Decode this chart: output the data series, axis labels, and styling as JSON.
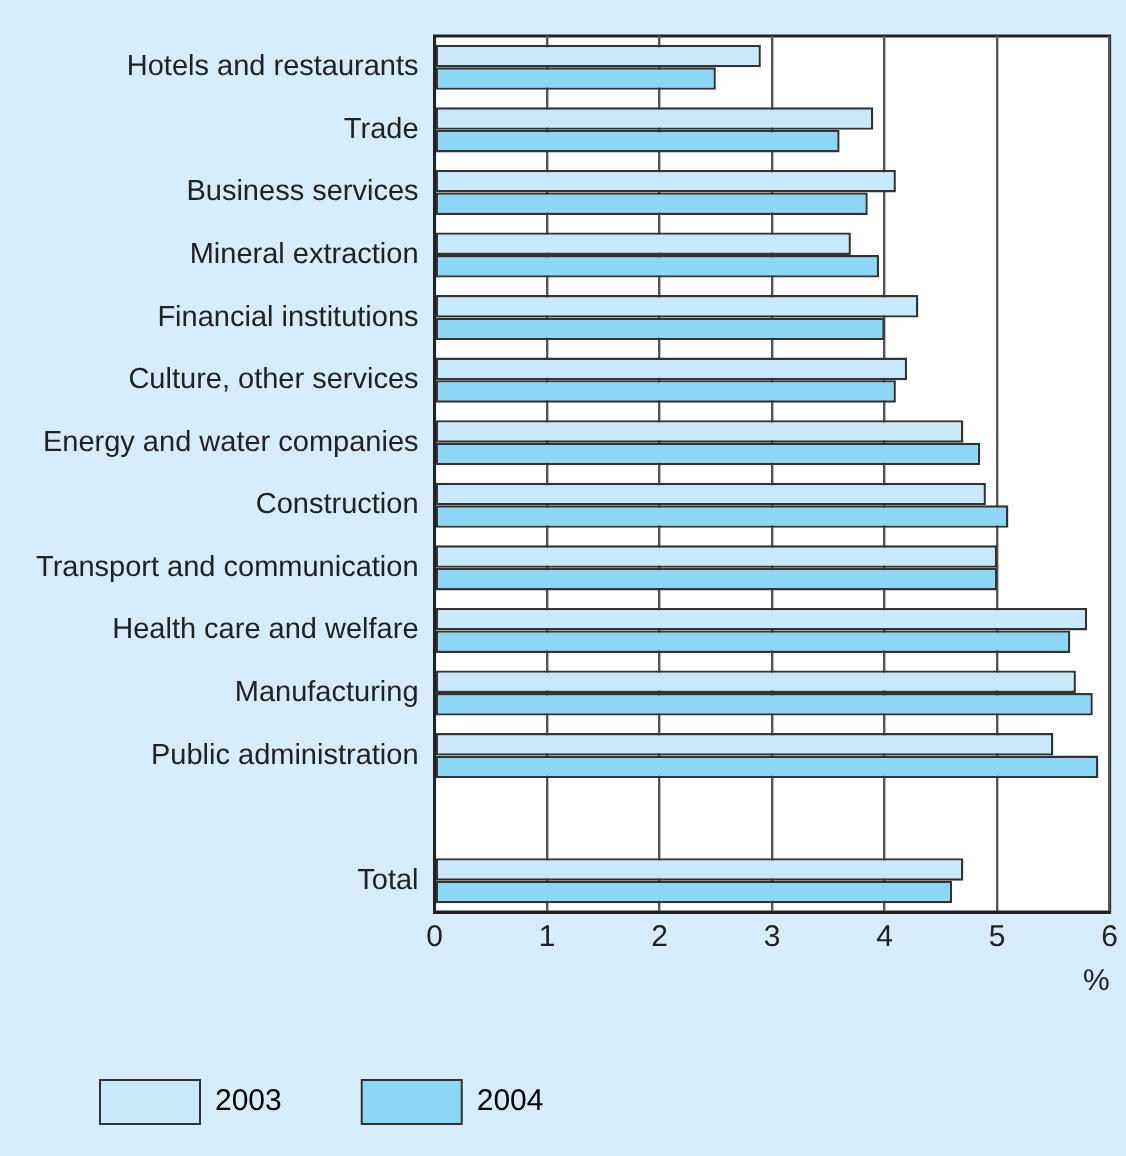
{
  "chart_data": {
    "type": "bar",
    "orientation": "horizontal",
    "xlabel": "%",
    "categories": [
      "Hotels and restaurants",
      "Trade",
      "Business services",
      "Mineral extraction",
      "Financial institutions",
      "Culture, other services",
      "Energy and water companies",
      "Construction",
      "Transport and communication",
      "Health care and welfare",
      "Manufacturing",
      "Public administration",
      null,
      "Total"
    ],
    "series": [
      {
        "name": "2003",
        "color": "#c8e9f9",
        "values": [
          2.9,
          3.9,
          4.1,
          3.7,
          4.3,
          4.2,
          4.7,
          4.9,
          5.0,
          5.8,
          5.7,
          5.5,
          null,
          4.7
        ]
      },
      {
        "name": "2004",
        "color": "#8dd7f6",
        "values": [
          2.5,
          3.6,
          3.85,
          3.95,
          4.0,
          4.1,
          4.85,
          5.1,
          5.0,
          5.65,
          5.85,
          5.9,
          null,
          4.6
        ]
      }
    ],
    "xlim": [
      0,
      6
    ],
    "xticks": [
      0,
      1,
      2,
      3,
      4,
      5,
      6
    ],
    "grid": "x",
    "legend": "bottom left"
  }
}
